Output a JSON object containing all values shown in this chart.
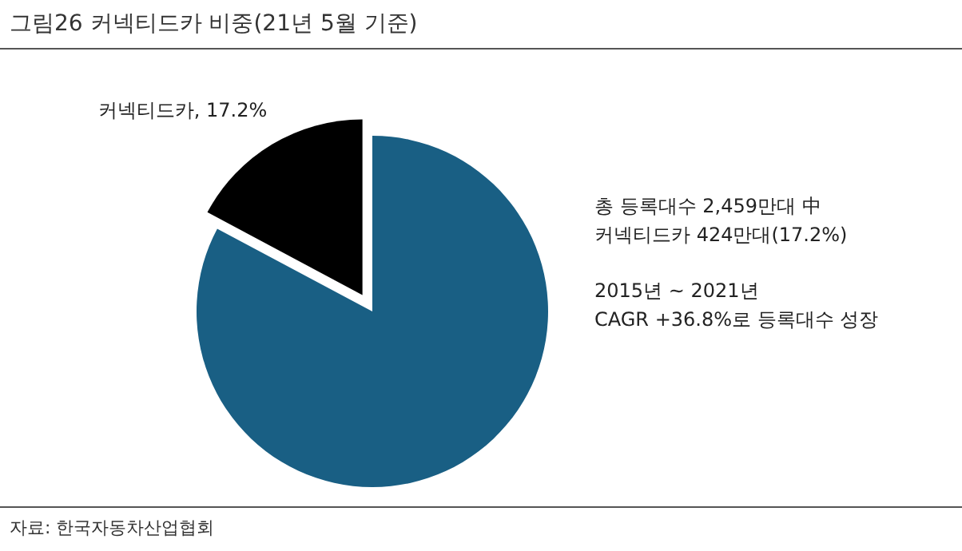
{
  "chart_data": {
    "type": "pie",
    "title": "그림26 커넥티드카 비중(21년 5월 기준)",
    "categories": [
      null,
      "커넥티드카"
    ],
    "values": [
      82.8,
      17.2
    ],
    "colors": [
      "#195f84",
      "#000000"
    ],
    "value_labels": [
      null,
      ", 17.2%"
    ],
    "annotations": [
      "총 등록대수 2,459만대 中",
      "커넥티드카 424만대(17.2%)",
      "2015년 ~ 2021년",
      "CAGR +36.8%로 등록대수 성장",
      "자료: 한국자동차산업협회"
    ],
    "legend": false
  }
}
